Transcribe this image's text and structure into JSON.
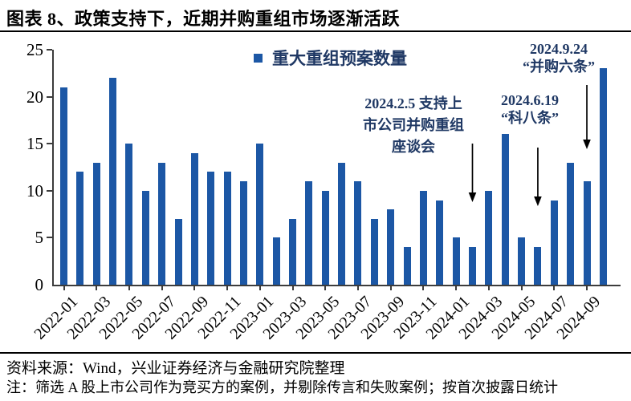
{
  "page": {
    "title": "图表 8、政策支持下，近期并购重组市场逐渐活跃"
  },
  "footer": {
    "source": "资料来源：Wind，兴业证券经济与金融研究院整理",
    "note": "注：筛选 A 股上市公司作为竞买方的案例，并剔除传言和失败案例；按首次披露日统计"
  },
  "chart_data": {
    "type": "bar",
    "title": "图表 8、政策支持下，近期并购重组市场逐渐活跃",
    "grid": false,
    "legend_position": "top-center",
    "bar_color": "#1C57A5",
    "annotation_text_color": "#1F3864",
    "axis_color": "#3c3c3c",
    "ylim": [
      0,
      25
    ],
    "yticks": [
      0,
      5,
      10,
      15,
      20,
      25
    ],
    "x": [
      "2022-01",
      "2022-02",
      "2022-03",
      "2022-04",
      "2022-05",
      "2022-06",
      "2022-07",
      "2022-08",
      "2022-09",
      "2022-10",
      "2022-11",
      "2022-12",
      "2023-01",
      "2023-02",
      "2023-03",
      "2023-04",
      "2023-05",
      "2023-06",
      "2023-07",
      "2023-08",
      "2023-09",
      "2023-10",
      "2023-11",
      "2023-12",
      "2024-01",
      "2024-02",
      "2024-03",
      "2024-04",
      "2024-05",
      "2024-06",
      "2024-07",
      "2024-08",
      "2024-09",
      "2024-10"
    ],
    "xtick_labels": [
      "2022-01",
      "2022-03",
      "2022-05",
      "2022-07",
      "2022-09",
      "2022-11",
      "2023-01",
      "2023-03",
      "2023-05",
      "2023-07",
      "2023-09",
      "2023-11",
      "2024-01",
      "2024-03",
      "2024-05",
      "2024-07",
      "2024-09"
    ],
    "series": [
      {
        "name": "重大重组预案数量",
        "values": [
          21,
          12,
          13,
          22,
          15,
          10,
          13,
          7,
          14,
          12,
          12,
          11,
          15,
          5,
          7,
          11,
          10,
          13,
          11,
          7,
          8,
          4,
          10,
          9,
          5,
          4,
          10,
          16,
          5,
          4,
          9,
          13,
          11,
          23
        ]
      }
    ],
    "annotations": [
      {
        "lines": [
          "2024.2.5 支持上",
          "市公司并购重组",
          "座谈会"
        ],
        "arrow_to": "2024-02"
      },
      {
        "lines": [
          "2024.6.19",
          "“科八条”"
        ],
        "arrow_to": "2024-06"
      },
      {
        "lines": [
          "2024.9.24",
          "“并购六条”"
        ],
        "arrow_to": "2024-09"
      }
    ]
  }
}
